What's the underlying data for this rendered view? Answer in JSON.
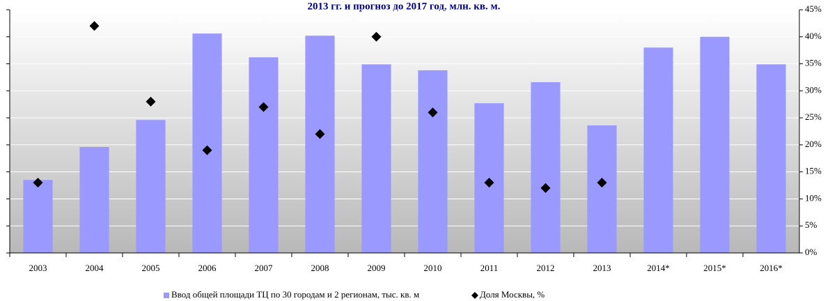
{
  "chart_data": {
    "type": "bar",
    "title": "2013 гг. и прогноз до 2017 год, млн. кв. м.",
    "categories": [
      "2003",
      "2004",
      "2005",
      "2006",
      "2007",
      "2008",
      "2009",
      "2010",
      "2011",
      "2012",
      "2013",
      "2014*",
      "2015*",
      "2016*"
    ],
    "series": [
      {
        "name": "Ввод общей площади ТЦ по 30 городам и 2 регионам, тыс. кв. м",
        "color": "#9999ff",
        "type": "bar",
        "values": [
          13.5,
          19.6,
          24.6,
          40.6,
          36.2,
          40.2,
          34.9,
          33.8,
          27.7,
          31.6,
          23.6,
          38.0,
          40.0,
          34.9
        ]
      },
      {
        "name": "Доля Москвы, %",
        "color": "#000000",
        "type": "scatter",
        "axis": "y2",
        "values": [
          13,
          42,
          28,
          19,
          27,
          22,
          40,
          26,
          13,
          12,
          13,
          null,
          null,
          null
        ]
      }
    ],
    "ylim": [
      0,
      45
    ],
    "yticks": [
      0,
      5,
      10,
      15,
      20,
      25,
      30,
      35,
      40,
      45
    ],
    "y2lim": [
      0,
      45
    ],
    "y2ticks": [
      {
        "value": 0,
        "label": "0%"
      },
      {
        "value": 5,
        "label": "5%"
      },
      {
        "value": 10,
        "label": "10%"
      },
      {
        "value": 15,
        "label": "15%"
      },
      {
        "value": 20,
        "label": "20%"
      },
      {
        "value": 25,
        "label": "25%"
      },
      {
        "value": 30,
        "label": "30%"
      },
      {
        "value": 35,
        "label": "35%"
      },
      {
        "value": 40,
        "label": "40%"
      },
      {
        "value": 45,
        "label": "45%"
      }
    ],
    "grid": true,
    "legend": "bottom"
  }
}
